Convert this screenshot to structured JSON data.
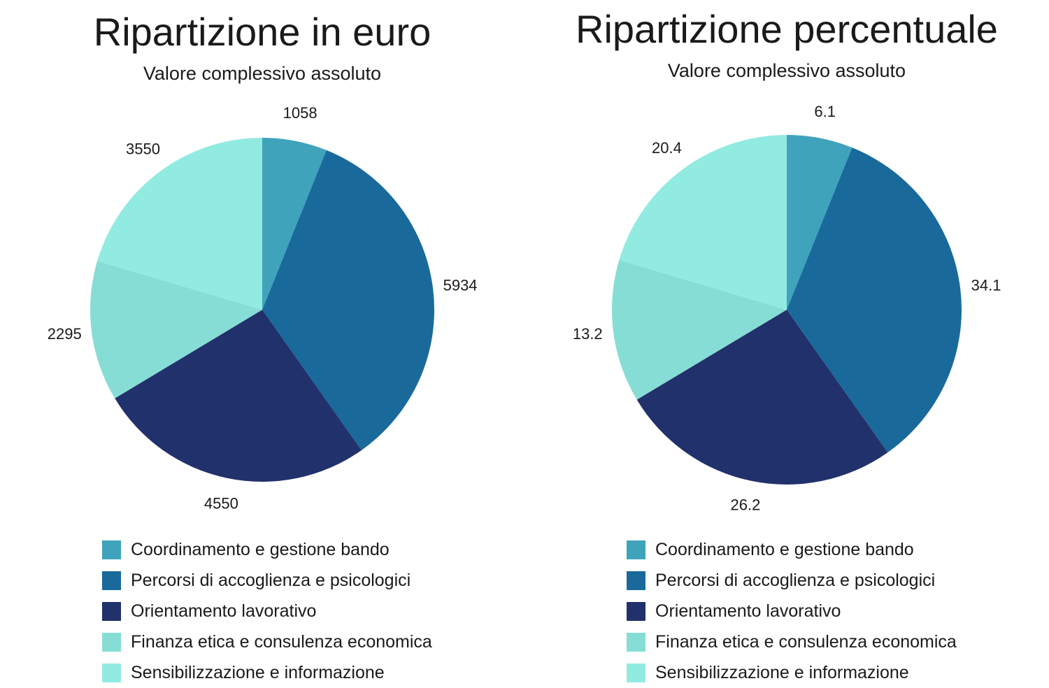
{
  "chart_data": [
    {
      "type": "pie",
      "title": "Ripartizione in euro",
      "subtitle": "Valore complessivo assoluto",
      "categories": [
        "Coordinamento e gestione bando",
        "Percorsi di accoglienza e psicologici",
        "Orientamento lavorativo",
        "Finanza etica e consulenza economica",
        "Sensibilizzazione e informazione"
      ],
      "values": [
        1058,
        5934,
        4550,
        2295,
        3550
      ],
      "labels": [
        "1058",
        "5934",
        "4550",
        "2295",
        "3550"
      ],
      "colors": [
        "#3fa3bc",
        "#196a9b",
        "#21316b",
        "#86ddd5",
        "#92ebe1"
      ],
      "legend_position": "bottom"
    },
    {
      "type": "pie",
      "title": "Ripartizione percentuale",
      "subtitle": "Valore complessivo assoluto",
      "categories": [
        "Coordinamento e gestione bando",
        "Percorsi di accoglienza e psicologici",
        "Orientamento lavorativo",
        "Finanza etica e consulenza economica",
        "Sensibilizzazione e informazione"
      ],
      "values": [
        6.1,
        34.1,
        26.2,
        13.2,
        20.4
      ],
      "labels": [
        "6.1",
        "34.1",
        "26.2",
        "13.2",
        "20.4"
      ],
      "colors": [
        "#3fa3bc",
        "#196a9b",
        "#21316b",
        "#86ddd5",
        "#92ebe1"
      ],
      "legend_position": "bottom"
    }
  ]
}
